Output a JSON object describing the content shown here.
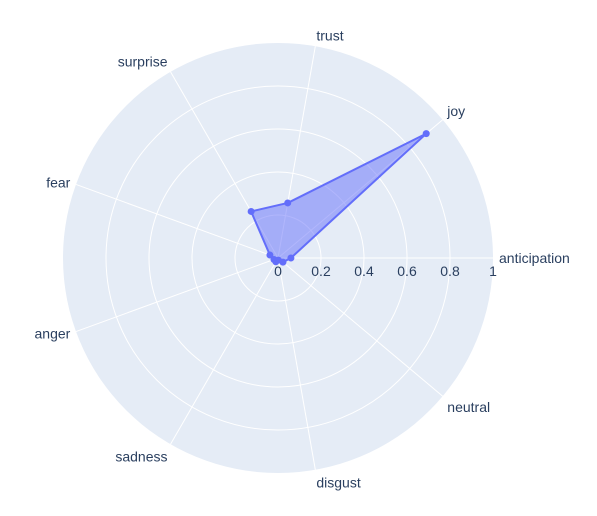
{
  "chart_data": {
    "type": "radar",
    "categories": [
      "anticipation",
      "joy",
      "trust",
      "surprise",
      "fear",
      "anger",
      "sadness",
      "disgust",
      "neutral"
    ],
    "series": [
      {
        "values": [
          0.06,
          0.9,
          0.26,
          0.25,
          0.04,
          0.02,
          0.02,
          0.01,
          0.03
        ],
        "line_color": "#636efa",
        "fill_color": "#636efa"
      }
    ],
    "radial_axis": {
      "range": [
        0,
        1
      ],
      "ticks": [
        "0",
        "0.2",
        "0.4",
        "0.6",
        "0.8",
        "1"
      ],
      "tick_values": [
        0,
        0.2,
        0.4,
        0.6,
        0.8,
        1
      ],
      "angle_deg": 0
    },
    "direction": "counterclockwise",
    "rotation_deg": 0,
    "grid": true,
    "colors": {
      "polar_bg": "#e5ecf6",
      "grid": "#ffffff",
      "text": "#2a3f5f"
    }
  }
}
